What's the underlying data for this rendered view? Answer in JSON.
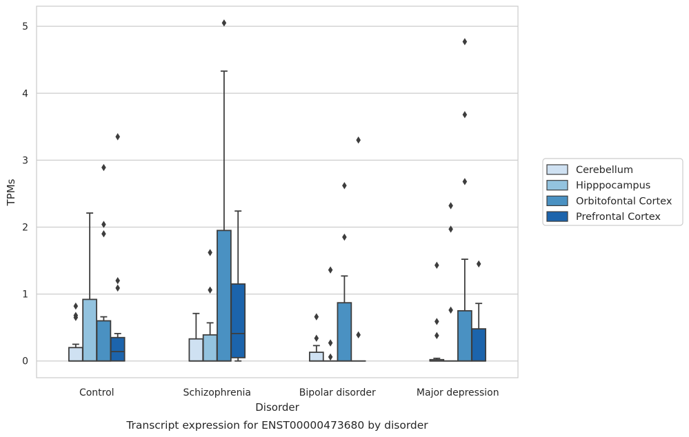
{
  "chart_data": {
    "type": "boxplot",
    "caption": "Transcript expression for ENST00000473680 by disorder",
    "xlabel": "Disorder",
    "ylabel": "TPMs",
    "ylim": [
      -0.25,
      5.3
    ],
    "yticks": [
      0,
      1,
      2,
      3,
      4,
      5
    ],
    "grid": true,
    "legend_position": "right",
    "categories": [
      "Control",
      "Schizophrenia",
      "Bipolar disorder",
      "Major depression"
    ],
    "series": [
      {
        "name": "Cerebellum",
        "color": "#cfe1f2",
        "boxes": [
          {
            "q1": 0,
            "median": 0,
            "q3": 0.2,
            "whislo": 0,
            "whishi": 0.25,
            "fliers": [
              0.65,
              0.68,
              0.82
            ]
          },
          {
            "q1": 0,
            "median": 0,
            "q3": 0.33,
            "whislo": 0,
            "whishi": 0.71,
            "fliers": []
          },
          {
            "q1": 0,
            "median": 0,
            "q3": 0.13,
            "whislo": 0,
            "whishi": 0.23,
            "fliers": [
              0.34,
              0.66
            ]
          },
          {
            "q1": 0,
            "median": 0,
            "q3": 0.02,
            "whislo": 0,
            "whishi": 0.04,
            "fliers": [
              0.38,
              0.59,
              1.43
            ]
          }
        ]
      },
      {
        "name": "Hipppocampus",
        "color": "#93c3df",
        "boxes": [
          {
            "q1": 0,
            "median": 0,
            "q3": 0.92,
            "whislo": 0,
            "whishi": 2.21,
            "fliers": []
          },
          {
            "q1": 0,
            "median": 0,
            "q3": 0.39,
            "whislo": 0,
            "whishi": 0.57,
            "fliers": [
              1.06,
              1.62
            ]
          },
          {
            "q1": 0,
            "median": 0,
            "q3": 0,
            "whislo": 0,
            "whishi": 0,
            "fliers": [
              0.06,
              0.27,
              1.36
            ]
          },
          {
            "q1": 0,
            "median": 0,
            "q3": 0,
            "whislo": 0,
            "whishi": 0,
            "fliers": [
              0.76,
              1.97,
              2.32
            ]
          }
        ]
      },
      {
        "name": "Orbitofontal Cortex",
        "color": "#4a91c2",
        "boxes": [
          {
            "q1": 0,
            "median": 0,
            "q3": 0.6,
            "whislo": 0,
            "whishi": 0.66,
            "fliers": [
              1.9,
              2.04,
              2.89
            ]
          },
          {
            "q1": 0,
            "median": 0,
            "q3": 1.95,
            "whislo": 0,
            "whishi": 4.33,
            "fliers": [
              5.05
            ]
          },
          {
            "q1": 0,
            "median": 0,
            "q3": 0.87,
            "whislo": 0,
            "whishi": 1.27,
            "fliers": [
              1.85,
              2.62
            ]
          },
          {
            "q1": 0,
            "median": 0,
            "q3": 0.75,
            "whislo": 0,
            "whishi": 1.52,
            "fliers": [
              2.68,
              3.68,
              4.77
            ]
          }
        ]
      },
      {
        "name": "Prefrontal Cortex",
        "color": "#1c64ac",
        "boxes": [
          {
            "q1": 0,
            "median": 0.14,
            "q3": 0.35,
            "whislo": 0,
            "whishi": 0.41,
            "fliers": [
              1.09,
              1.2,
              3.35
            ]
          },
          {
            "q1": 0.05,
            "median": 0.41,
            "q3": 1.15,
            "whislo": 0,
            "whishi": 2.24,
            "fliers": []
          },
          {
            "q1": 0,
            "median": 0,
            "q3": 0,
            "whislo": 0,
            "whishi": 0,
            "fliers": [
              0.39,
              3.3
            ]
          },
          {
            "q1": 0,
            "median": 0,
            "q3": 0.48,
            "whislo": 0,
            "whishi": 0.86,
            "fliers": [
              1.45
            ]
          }
        ]
      }
    ]
  }
}
